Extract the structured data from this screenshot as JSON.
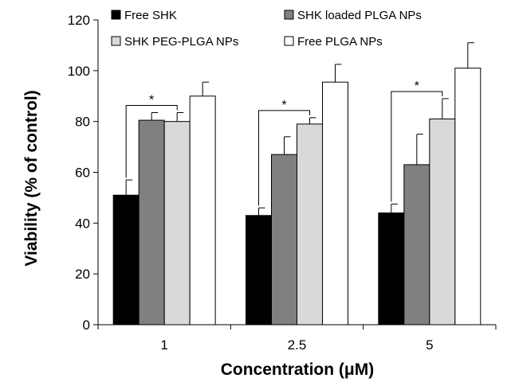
{
  "chart_data": {
    "type": "bar",
    "title": "",
    "xlabel": "Concentration (μM)",
    "ylabel": "Viability (% of control)",
    "categories": [
      "1",
      "2.5",
      "5"
    ],
    "ylim": [
      0,
      120
    ],
    "yticks": [
      "0",
      "20",
      "40",
      "60",
      "80",
      "100",
      "120"
    ],
    "series": [
      {
        "name": "Free SHK",
        "color": "#000000",
        "values": [
          51,
          43,
          44
        ],
        "errors": [
          6,
          3,
          3.5
        ]
      },
      {
        "name": "SHK loaded PLGA NPs",
        "color": "#808080",
        "values": [
          80.5,
          67,
          63
        ],
        "errors": [
          3,
          7,
          12
        ]
      },
      {
        "name": "SHK PEG-PLGA NPs",
        "color": "#d9d9d9",
        "values": [
          80,
          79,
          81
        ],
        "errors": [
          3.5,
          2.5,
          8
        ]
      },
      {
        "name": "Free PLGA NPs",
        "color": "#ffffff",
        "values": [
          90,
          95.5,
          101
        ],
        "errors": [
          5.5,
          7,
          10
        ]
      }
    ],
    "significance": [
      {
        "label": "*",
        "from_series": 0,
        "to_series": 2,
        "category": 0
      },
      {
        "label": "*",
        "from_series": 0,
        "to_series": 2,
        "category": 1
      },
      {
        "label": "*",
        "from_series": 0,
        "to_series": 2,
        "category": 2
      }
    ],
    "legend_position": "top",
    "grid": false
  }
}
